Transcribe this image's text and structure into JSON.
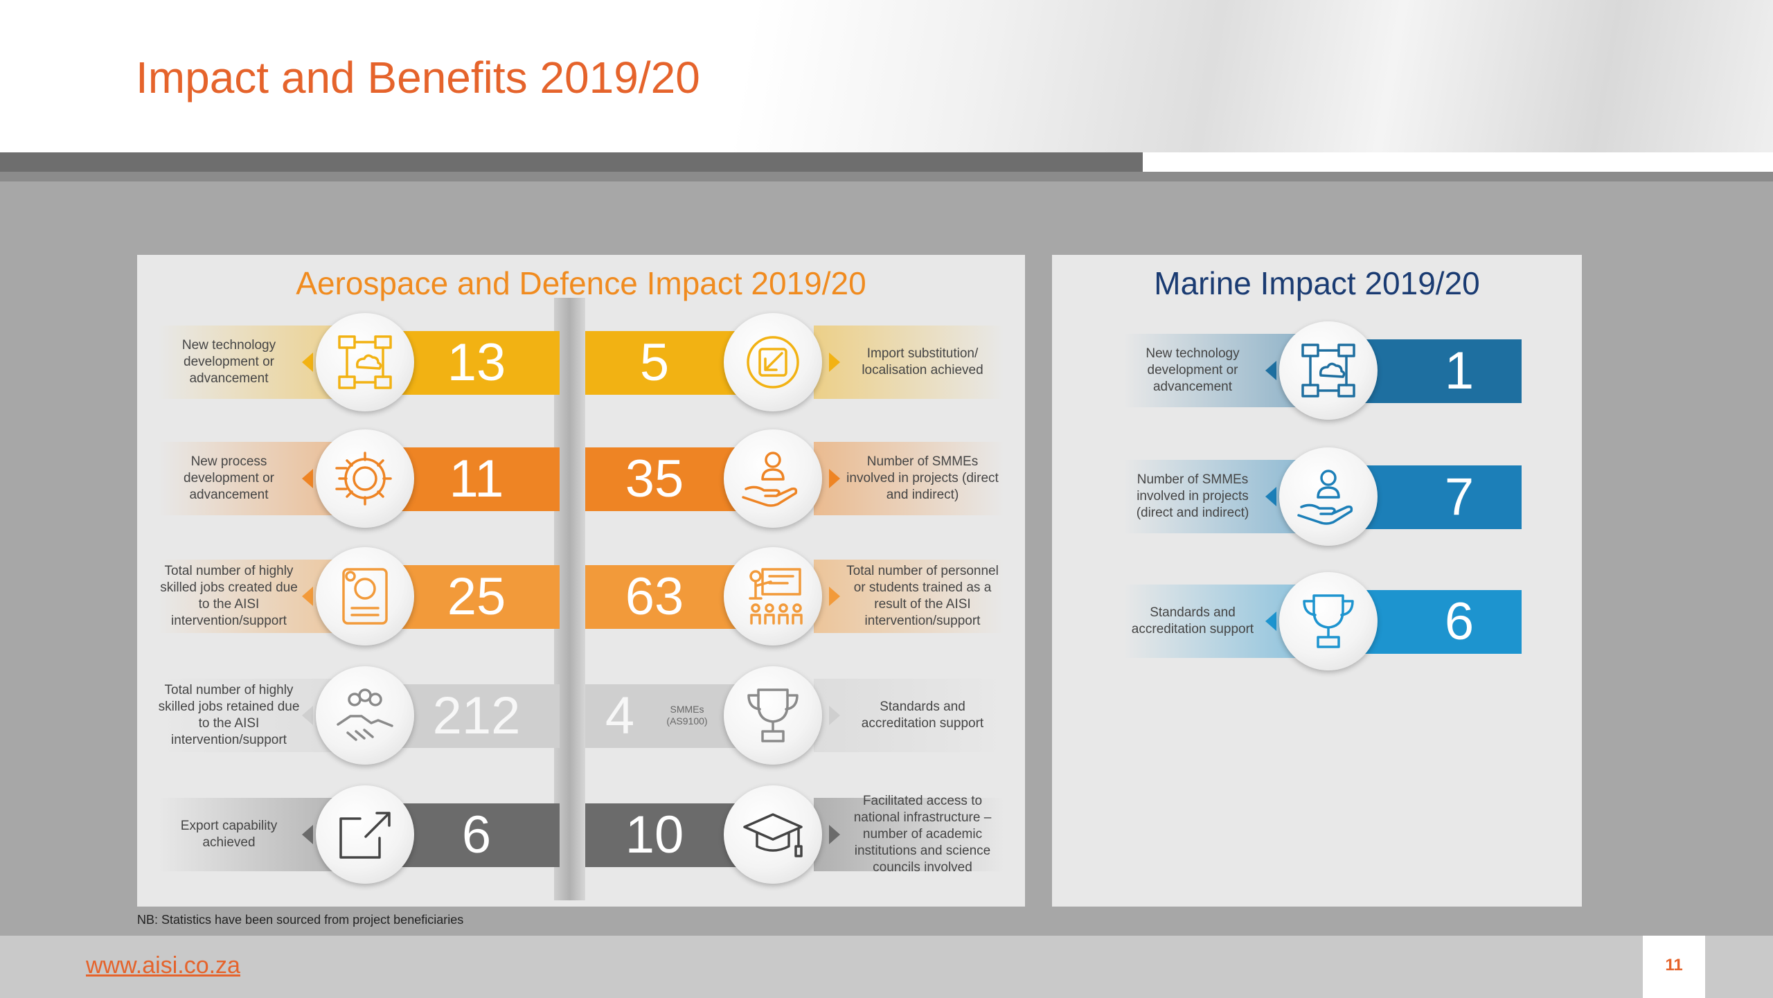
{
  "title": "Impact and Benefits 2019/20",
  "aerospace": {
    "title": "Aerospace and Defence Impact 2019/20",
    "left_items": [
      {
        "label": "New technology development or advancement",
        "value": "13",
        "icon": "network-cloud-icon",
        "color": "#f2b213"
      },
      {
        "label": "New process development or advancement",
        "value": "11",
        "icon": "gear-circuit-icon",
        "color": "#ee8424"
      },
      {
        "label": "Total number of highly skilled jobs created due to the AISI intervention/support",
        "value": "25",
        "icon": "resume-profile-icon",
        "color": "#f29a3a"
      },
      {
        "label": "Total number of highly skilled jobs retained due to the AISI intervention/support",
        "value": "212",
        "icon": "handshake-team-icon",
        "color": "#cfcfcf"
      },
      {
        "label": "Export capability achieved",
        "value": "6",
        "icon": "export-arrow-icon",
        "color": "#6b6b6b"
      }
    ],
    "right_items": [
      {
        "label": "Import substitution/ localisation achieved",
        "value": "5",
        "icon": "import-arrow-icon",
        "color": "#f2b213"
      },
      {
        "label": "Number of SMMEs involved in projects (direct and indirect)",
        "value": "35",
        "icon": "hand-person-icon",
        "color": "#ee8424"
      },
      {
        "label": "Total number of personnel or students trained as a result of the AISI intervention/support",
        "value": "63",
        "icon": "classroom-training-icon",
        "color": "#f29a3a"
      },
      {
        "label": "Standards and accreditation support",
        "value": "4",
        "sublabel": "SMMEs (AS9100)",
        "icon": "trophy-icon",
        "color": "#cfcfcf"
      },
      {
        "label": "Facilitated access to national infrastructure – number of academic institutions and science councils involved",
        "value": "10",
        "icon": "graduation-cap-icon",
        "color": "#6b6b6b"
      }
    ]
  },
  "marine": {
    "title": "Marine Impact 2019/20",
    "items": [
      {
        "label": "New technology development or advancement",
        "value": "1",
        "icon": "network-cloud-icon",
        "color": "#1e6fa0"
      },
      {
        "label": "Number of SMMEs involved in projects (direct and indirect)",
        "value": "7",
        "icon": "hand-person-icon",
        "color": "#1c7fb8"
      },
      {
        "label": "Standards and accreditation support",
        "value": "6",
        "icon": "trophy-icon",
        "color": "#1d94cf"
      }
    ]
  },
  "note": "NB: Statistics have been sourced from project beneficiaries",
  "footer": {
    "website": "www.aisi.co.za",
    "page_number": "11"
  }
}
